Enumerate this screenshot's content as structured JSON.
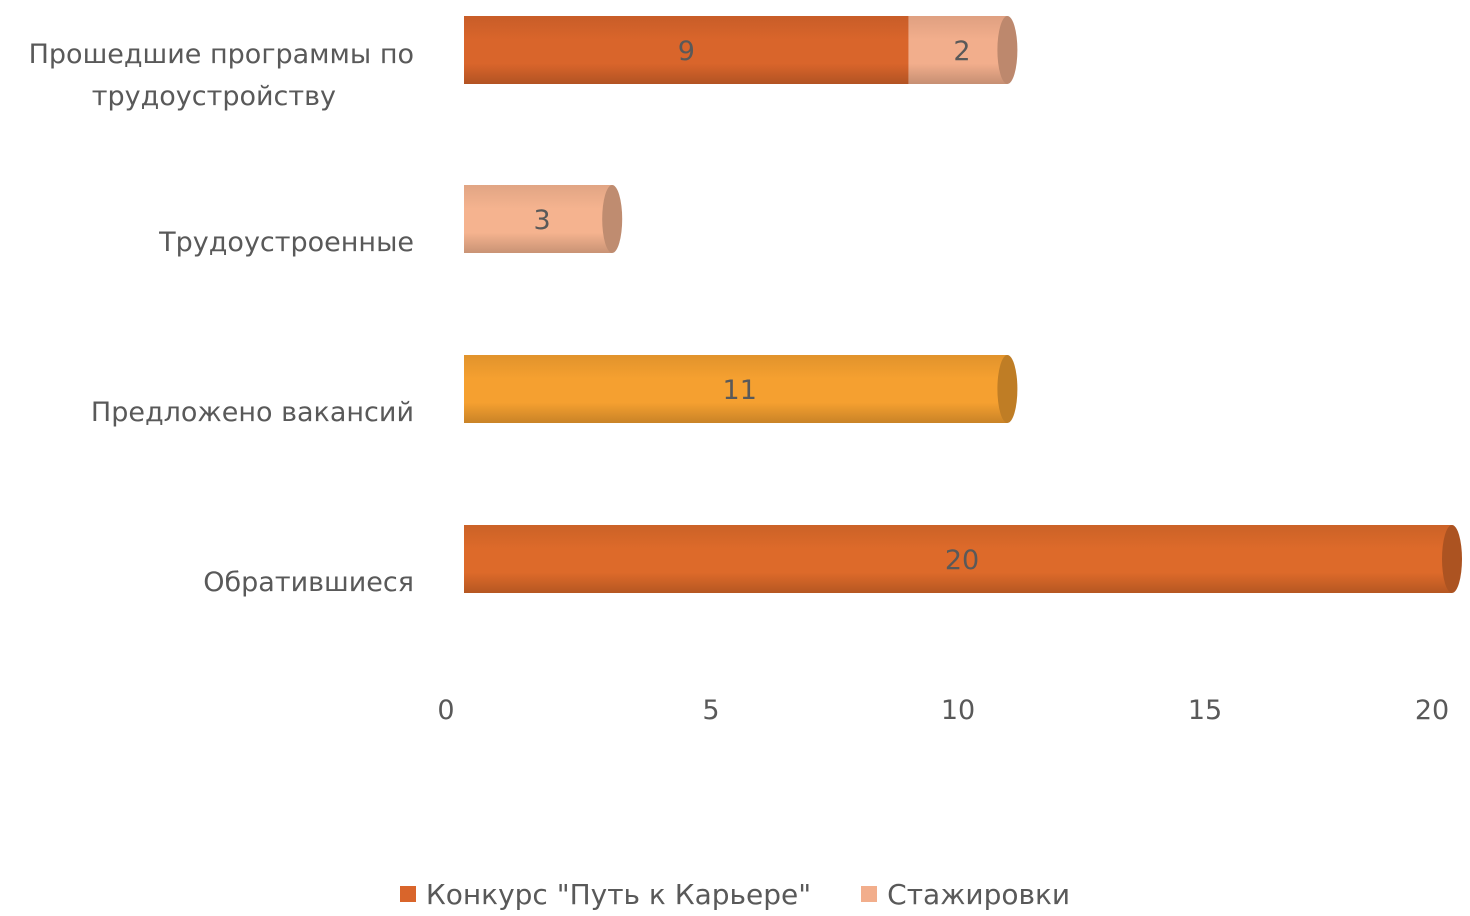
{
  "chart_data": {
    "type": "bar",
    "orientation": "horizontal",
    "stacked": true,
    "categories": [
      "Прошедшие программы по трудоустройству",
      "Трудоустроенные",
      "Предложено вакансий",
      "Обратившиеся"
    ],
    "category_lines": [
      [
        "Прошедшие программы по",
        "трудоустройству"
      ],
      [
        "Трудоустроенные"
      ],
      [
        "Предложено вакансий"
      ],
      [
        "Обратившиеся"
      ]
    ],
    "series": [
      {
        "name": "Конкурс \"Путь к Карьере\"",
        "values": [
          9,
          null,
          11,
          20
        ]
      },
      {
        "name": "Стажировки",
        "values": [
          2,
          3,
          null,
          null
        ]
      }
    ],
    "bar_colors": [
      "#dd6a2a",
      "#f5b38f",
      "#f5a030",
      "#dd6a2a"
    ],
    "series_colors": [
      "#d9652b",
      "#f2ae8c"
    ],
    "xlim": [
      0,
      20
    ],
    "xticks": [
      0,
      5,
      10,
      15,
      20
    ],
    "grid": false,
    "legend_position": "bottom",
    "legend_label_1": "Конкурс \"Путь к Карьере\"",
    "legend_label_2": "Стажировки"
  }
}
